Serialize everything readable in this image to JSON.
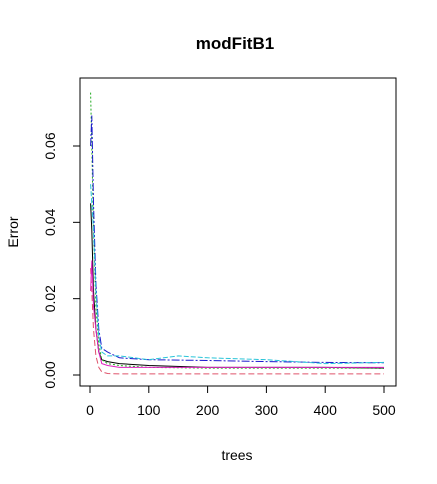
{
  "chart_data": {
    "type": "line",
    "title": "modFitB1",
    "xlabel": "trees",
    "ylabel": "Error",
    "xlim": [
      0,
      500
    ],
    "ylim": [
      0,
      0.075
    ],
    "x_ticks": [
      0,
      100,
      200,
      300,
      400,
      500
    ],
    "x_tick_labels": [
      "0",
      "100",
      "200",
      "300",
      "400",
      "500"
    ],
    "y_ticks": [
      0.0,
      0.02,
      0.04,
      0.06
    ],
    "y_tick_labels": [
      "0.00",
      "0.02",
      "0.04",
      "0.06"
    ],
    "grid": false,
    "legend": "none",
    "series": [
      {
        "color": "#000000",
        "dash": "",
        "x": [
          1,
          3,
          6,
          10,
          15,
          20,
          30,
          50,
          100,
          200,
          300,
          400,
          500
        ],
        "y": [
          0.045,
          0.038,
          0.022,
          0.012,
          0.006,
          0.004,
          0.0035,
          0.003,
          0.0025,
          0.002,
          0.002,
          0.002,
          0.0018
        ]
      },
      {
        "color": "#df536b",
        "dash": "6,3",
        "x": [
          1,
          3,
          6,
          10,
          15,
          20,
          30,
          50,
          100,
          200,
          300,
          400,
          500
        ],
        "y": [
          0.028,
          0.022,
          0.012,
          0.005,
          0.002,
          0.0008,
          0.0004,
          0.0003,
          0.0003,
          0.0003,
          0.0003,
          0.0003,
          0.0003
        ]
      },
      {
        "color": "#22aa22",
        "dash": "2,2",
        "x": [
          1,
          3,
          6,
          10,
          15,
          20,
          30,
          50,
          100,
          200,
          300,
          400,
          500
        ],
        "y": [
          0.074,
          0.06,
          0.038,
          0.018,
          0.008,
          0.004,
          0.003,
          0.0025,
          0.002,
          0.0018,
          0.0018,
          0.0018,
          0.0018
        ]
      },
      {
        "color": "#1a1acc",
        "dash": "8,2,2,2",
        "x": [
          1,
          3,
          6,
          10,
          15,
          20,
          30,
          50,
          100,
          200,
          300,
          400,
          500
        ],
        "y": [
          0.06,
          0.068,
          0.045,
          0.024,
          0.012,
          0.007,
          0.006,
          0.0045,
          0.004,
          0.0038,
          0.0035,
          0.0033,
          0.0032
        ]
      },
      {
        "color": "#28c4d8",
        "dash": "5,2",
        "x": [
          1,
          3,
          6,
          10,
          15,
          20,
          30,
          50,
          100,
          150,
          200,
          300,
          400,
          500
        ],
        "y": [
          0.05,
          0.045,
          0.038,
          0.022,
          0.01,
          0.006,
          0.005,
          0.005,
          0.004,
          0.005,
          0.0045,
          0.004,
          0.003,
          0.0033
        ]
      },
      {
        "color": "#e020c0",
        "dash": "",
        "x": [
          1,
          3,
          6,
          10,
          15,
          20,
          30,
          50,
          100,
          200,
          300,
          400,
          500
        ],
        "y": [
          0.022,
          0.03,
          0.018,
          0.012,
          0.006,
          0.003,
          0.0025,
          0.002,
          0.002,
          0.002,
          0.002,
          0.002,
          0.002
        ]
      }
    ]
  }
}
